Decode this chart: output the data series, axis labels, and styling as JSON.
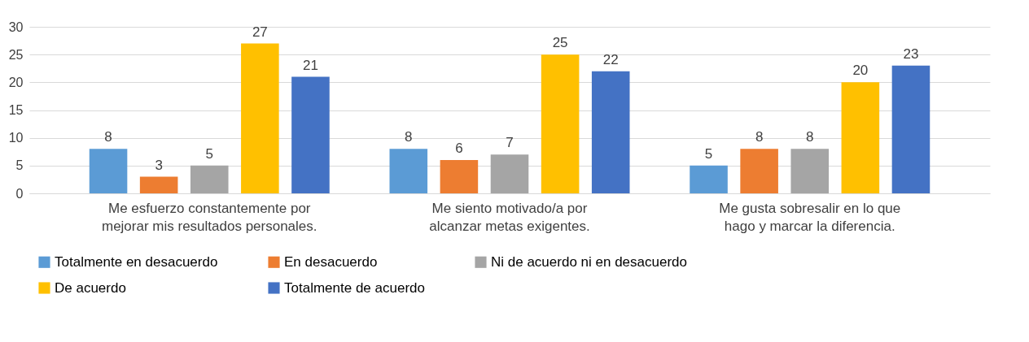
{
  "chart_data": {
    "type": "bar",
    "categories": [
      "Me esfuerzo constantemente por mejorar mis resultados personales.",
      "Me siento motivado/a por alcanzar metas exigentes.",
      "Me gusta sobresalir en lo que hago y marcar la diferencia."
    ],
    "series": [
      {
        "name": "Totalmente en desacuerdo",
        "color": "#5b9bd5",
        "values": [
          8,
          8,
          5
        ]
      },
      {
        "name": "En desacuerdo",
        "color": "#ed7d31",
        "values": [
          3,
          6,
          8
        ]
      },
      {
        "name": "Ni de acuerdo ni en desacuerdo",
        "color": "#a5a5a5",
        "values": [
          5,
          7,
          8
        ]
      },
      {
        "name": "De acuerdo",
        "color": "#ffc000",
        "values": [
          27,
          25,
          20
        ]
      },
      {
        "name": "Totalmente de acuerdo",
        "color": "#4472c4",
        "values": [
          21,
          22,
          23
        ]
      }
    ],
    "ylim": [
      0,
      30
    ],
    "yticks": [
      0,
      5,
      10,
      15,
      20,
      25,
      30
    ],
    "grid": "y",
    "legend": "bottom",
    "data_labels": true
  }
}
